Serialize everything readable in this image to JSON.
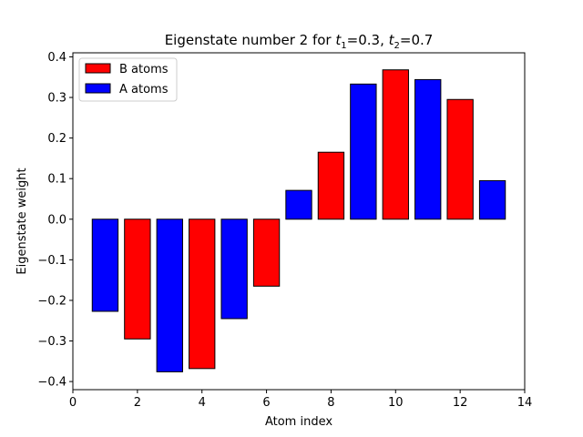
{
  "chart_data": {
    "type": "bar",
    "title": {
      "prefix": "Eigenstate number 2 for ",
      "t1_symbol": "t",
      "t1_sub": "1",
      "t1_value": "=0.3, ",
      "t2_symbol": "t",
      "t2_sub": "2",
      "t2_value": "=0.7"
    },
    "xlabel": "Atom index",
    "ylabel": "Eigenstate weight",
    "xlim": [
      0,
      14
    ],
    "ylim": [
      -0.42,
      0.41
    ],
    "xticks": [
      0,
      2,
      4,
      6,
      8,
      10,
      12,
      14
    ],
    "yticks": [
      0.4,
      0.3,
      0.2,
      0.1,
      0.0,
      -0.1,
      -0.2,
      -0.3,
      -0.4
    ],
    "xtick_labels": [
      "0",
      "2",
      "4",
      "6",
      "8",
      "10",
      "12",
      "14"
    ],
    "ytick_labels": [
      "0.4",
      "0.3",
      "0.2",
      "0.1",
      "0.0",
      "−0.1",
      "−0.2",
      "−0.3",
      "−0.4"
    ],
    "bar_width": 0.8,
    "legend_position": "top-left",
    "series": [
      {
        "name": "B atoms",
        "color": "#ff0000",
        "x": [
          2,
          4,
          6,
          8,
          10,
          12
        ],
        "values": [
          -0.295,
          -0.368,
          -0.165,
          0.165,
          0.368,
          0.295
        ]
      },
      {
        "name": "A atoms",
        "color": "#0000ff",
        "x": [
          1,
          3,
          5,
          7,
          9,
          11,
          13
        ],
        "values": [
          -0.227,
          -0.376,
          -0.245,
          0.071,
          0.333,
          0.344,
          0.095
        ]
      }
    ]
  }
}
